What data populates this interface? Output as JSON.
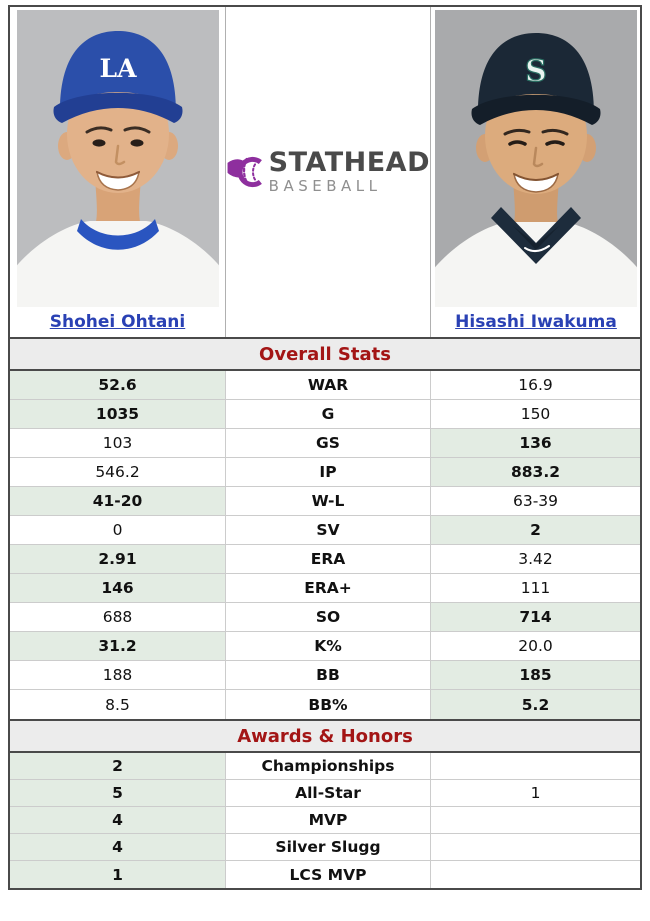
{
  "logo": {
    "title": "STATHEAD",
    "subtitle": "BASEBALL"
  },
  "players": {
    "left": {
      "name": "Shohei Ohtani",
      "cap_text": "LA"
    },
    "right": {
      "name": "Hisashi Iwakuma",
      "cap_text": "S"
    }
  },
  "sections": [
    {
      "title": "Overall Stats",
      "rows": [
        {
          "left": "52.6",
          "stat": "WAR",
          "right": "16.9",
          "highlight": "left"
        },
        {
          "left": "1035",
          "stat": "G",
          "right": "150",
          "highlight": "left"
        },
        {
          "left": "103",
          "stat": "GS",
          "right": "136",
          "highlight": "right"
        },
        {
          "left": "546.2",
          "stat": "IP",
          "right": "883.2",
          "highlight": "right"
        },
        {
          "left": "41-20",
          "stat": "W-L",
          "right": "63-39",
          "highlight": "left"
        },
        {
          "left": "0",
          "stat": "SV",
          "right": "2",
          "highlight": "right"
        },
        {
          "left": "2.91",
          "stat": "ERA",
          "right": "3.42",
          "highlight": "left"
        },
        {
          "left": "146",
          "stat": "ERA+",
          "right": "111",
          "highlight": "left"
        },
        {
          "left": "688",
          "stat": "SO",
          "right": "714",
          "highlight": "right"
        },
        {
          "left": "31.2",
          "stat": "K%",
          "right": "20.0",
          "highlight": "left"
        },
        {
          "left": "188",
          "stat": "BB",
          "right": "185",
          "highlight": "right"
        },
        {
          "left": "8.5",
          "stat": "BB%",
          "right": "5.2",
          "highlight": "right"
        }
      ]
    },
    {
      "title": "Awards & Honors",
      "rows": [
        {
          "left": "2",
          "stat": "Championships",
          "right": "",
          "highlight": "left"
        },
        {
          "left": "5",
          "stat": "All-Star",
          "right": "1",
          "highlight": "left"
        },
        {
          "left": "4",
          "stat": "MVP",
          "right": "",
          "highlight": "left"
        },
        {
          "left": "4",
          "stat": "Silver Slugg",
          "right": "",
          "highlight": "left"
        },
        {
          "left": "1",
          "stat": "LCS MVP",
          "right": "",
          "highlight": "left"
        }
      ]
    }
  ],
  "colors": {
    "highlight_green": "#e3ece3",
    "header_red": "#a31515",
    "link_blue": "#2a41b4",
    "logo_purple": "#8e2f9e",
    "border_dark": "#4a4a4a",
    "row_border": "#cccccc",
    "cap_left_blue": "#2b4faa",
    "cap_right_navy": "#1b2836"
  }
}
